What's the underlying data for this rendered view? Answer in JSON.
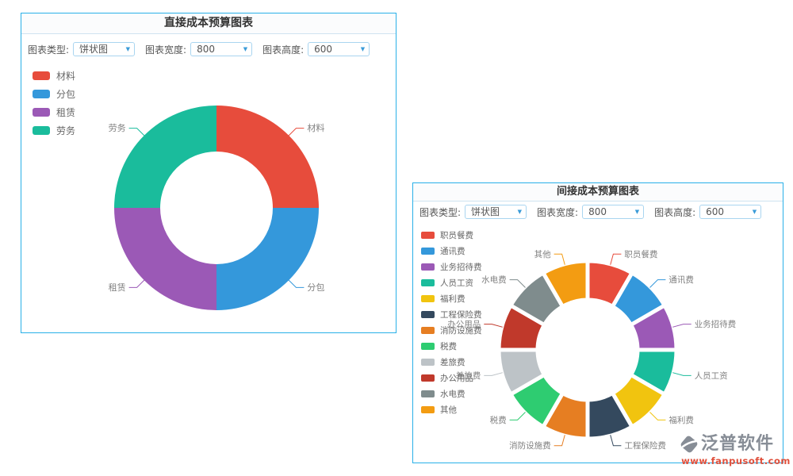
{
  "ui_colors": {
    "panel_border": "#29b0e8",
    "title_divider": "#cfe3f1",
    "title_text": "#333333",
    "select_border": "#a9d5f0",
    "select_caret": "#3a9bd8",
    "control_text": "#555555",
    "legend_text": "#666666",
    "pie_label_text": "#808080",
    "watermark_gray": "#878d96",
    "watermark_red": "#e0503c"
  },
  "panels": [
    {
      "title": "直接成本预算图表",
      "controls": {
        "type_label": "图表类型:",
        "type_value": "饼状图",
        "width_label": "图表宽度:",
        "width_value": "800",
        "height_label": "图表高度:",
        "height_value": "600"
      }
    },
    {
      "title": "间接成本预算图表",
      "controls": {
        "type_label": "图表类型:",
        "type_value": "饼状图",
        "width_label": "图表宽度:",
        "width_value": "800",
        "height_label": "图表高度:",
        "height_value": "600"
      }
    }
  ],
  "chart_data": [
    {
      "type": "pie",
      "variant": "donut",
      "title": "直接成本预算图表",
      "labels": [
        "材料",
        "分包",
        "租赁",
        "劳务"
      ],
      "values": [
        25,
        25,
        25,
        25
      ],
      "values_note": "four equal quarter segments, clockwise from top",
      "colors": [
        "#e74c3c",
        "#3498db",
        "#9b59b6",
        "#1abc9c"
      ],
      "start_angle_deg": 0,
      "clockwise": true,
      "legend_position": "top-left",
      "legend_entries": [
        "材料",
        "分包",
        "租赁",
        "劳务"
      ]
    },
    {
      "type": "pie",
      "variant": "donut-rounded",
      "title": "间接成本预算图表",
      "labels": [
        "职员餐费",
        "通讯费",
        "业务招待费",
        "人员工资",
        "福利费",
        "工程保险费",
        "消防设施费",
        "税费",
        "差旅费",
        "办公用品",
        "水电费",
        "其他"
      ],
      "values": [
        1,
        1,
        1,
        1,
        1,
        1,
        1,
        1,
        1,
        1,
        1,
        1
      ],
      "values_note": "twelve equal 30-degree segments, clockwise from top, white gaps with rounded corners",
      "colors": [
        "#e74c3c",
        "#3498db",
        "#9b59b6",
        "#1abc9c",
        "#f1c40f",
        "#34495e",
        "#e67e22",
        "#2ecc71",
        "#bdc3c7",
        "#c0392b",
        "#7f8c8d",
        "#f39c12"
      ],
      "start_angle_deg": 0,
      "clockwise": true,
      "legend_position": "top-left",
      "legend_entries": [
        "职员餐费",
        "通讯费",
        "业务招待费",
        "人员工资",
        "福利费",
        "工程保险费",
        "消防设施费",
        "税费",
        "差旅费",
        "办公用品",
        "水电费",
        "其他"
      ]
    }
  ],
  "watermark": {
    "brand": "泛普软件",
    "url": "www.fanpusoft.com"
  }
}
